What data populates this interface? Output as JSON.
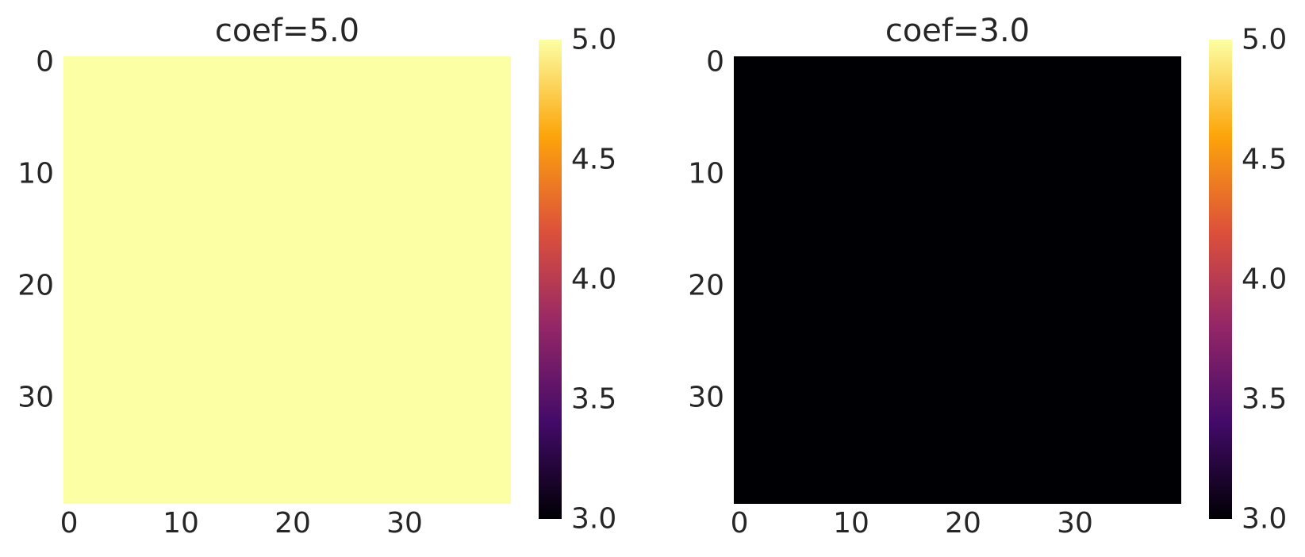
{
  "chart_data": [
    {
      "type": "heatmap",
      "title": "coef=5.0",
      "grid": false,
      "xlim": [
        -0.5,
        39.5
      ],
      "ylim": [
        39.5,
        -0.5
      ],
      "x_ticks": [
        0,
        10,
        20,
        30
      ],
      "y_ticks": [
        0,
        10,
        20,
        30
      ],
      "x_tick_labels": [
        "0",
        "10",
        "20",
        "30"
      ],
      "y_tick_labels": [
        "0",
        "10",
        "20",
        "30"
      ],
      "rows": 40,
      "cols": 40,
      "uniform_value": 5.0,
      "colormap": "inferno",
      "colorbar": {
        "range": [
          3.0,
          5.0
        ],
        "ticks": [
          3.0,
          3.5,
          4.0,
          4.5,
          5.0
        ],
        "tick_labels": [
          "3.0",
          "3.5",
          "4.0",
          "4.5",
          "5.0"
        ],
        "placement": "right"
      }
    },
    {
      "type": "heatmap",
      "title": "coef=3.0",
      "grid": false,
      "xlim": [
        -0.5,
        39.5
      ],
      "ylim": [
        39.5,
        -0.5
      ],
      "x_ticks": [
        0,
        10,
        20,
        30
      ],
      "y_ticks": [
        0,
        10,
        20,
        30
      ],
      "x_tick_labels": [
        "0",
        "10",
        "20",
        "30"
      ],
      "y_tick_labels": [
        "0",
        "10",
        "20",
        "30"
      ],
      "rows": 40,
      "cols": 40,
      "uniform_value": 3.0,
      "colormap": "inferno",
      "colorbar": {
        "range": [
          3.0,
          5.0
        ],
        "ticks": [
          3.0,
          3.5,
          4.0,
          4.5,
          5.0
        ],
        "tick_labels": [
          "3.0",
          "3.5",
          "4.0",
          "4.5",
          "5.0"
        ],
        "placement": "right"
      }
    }
  ],
  "colormap_stops": [
    "#000004",
    "#420a68",
    "#932667",
    "#dd513a",
    "#fca50a",
    "#fcffa4"
  ]
}
